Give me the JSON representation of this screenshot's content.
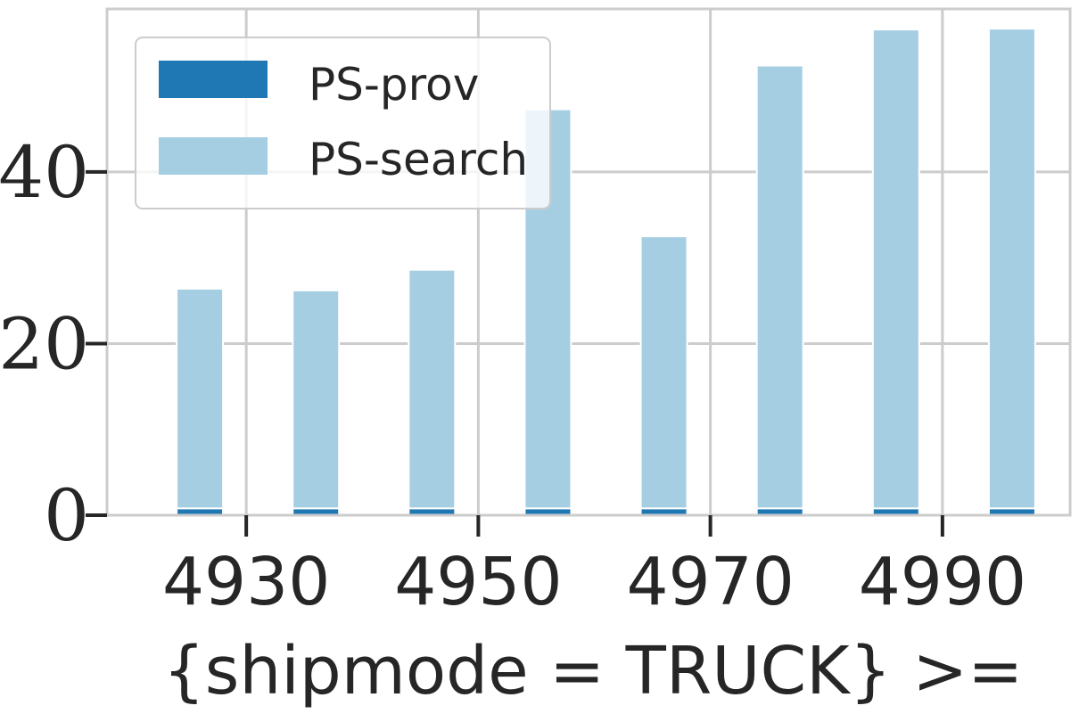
{
  "chart_data": {
    "type": "bar",
    "stacked": true,
    "title": "",
    "xlabel": "{shipmode = TRUCK} >=",
    "ylabel": "",
    "x": [
      4926,
      4936,
      4946,
      4956,
      4966,
      4976,
      4986,
      4996
    ],
    "xticks": [
      4930,
      4950,
      4970,
      4990
    ],
    "yticks": [
      0,
      20,
      40
    ],
    "xlim": [
      4918,
      5001
    ],
    "ylim": [
      0,
      59
    ],
    "grid": true,
    "legend_position": "top-left",
    "series": [
      {
        "name": "PS-prov",
        "color": "#1f77b4",
        "values": [
          0.8,
          0.8,
          0.8,
          0.8,
          0.8,
          0.8,
          0.8,
          0.8
        ]
      },
      {
        "name": "PS-search",
        "color": "#a6cee3",
        "values": [
          25.6,
          25.4,
          27.8,
          46.5,
          31.7,
          51.6,
          55.8,
          55.9
        ]
      }
    ]
  }
}
